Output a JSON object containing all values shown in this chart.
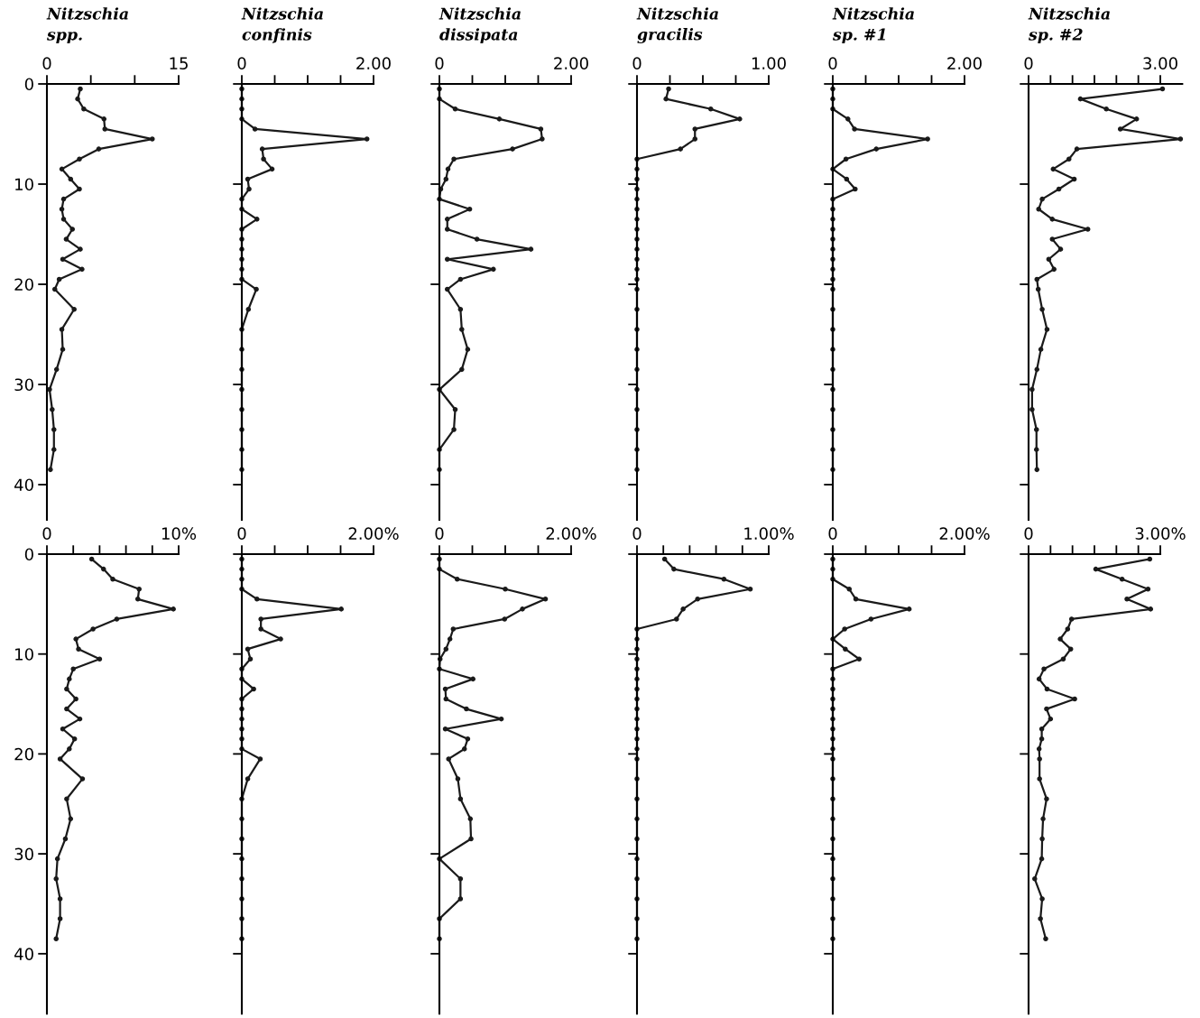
{
  "chart_data": [
    {
      "type": "line",
      "title": "Nitzschia",
      "subtitle": "spp.",
      "marker": "circle",
      "xlim": [
        0,
        15
      ],
      "xticks": [
        0,
        {
          "value": 5,
          "label": null
        },
        {
          "value": 10,
          "label": null
        },
        15
      ],
      "ylim": [
        43.5,
        0
      ],
      "yticks": [
        0,
        10,
        20,
        30,
        40
      ],
      "series": [
        {
          "color": "#1a1a1a",
          "x": [
            3.8,
            3.5,
            4.2,
            6.5,
            6.6,
            12.0,
            5.9,
            3.7,
            1.7,
            2.7,
            3.7,
            1.9,
            1.7,
            1.9,
            2.9,
            2.2,
            3.8,
            1.8,
            4.0,
            1.4,
            0.9,
            3.1,
            1.7,
            1.8,
            1.1,
            0.3,
            0.6,
            0.8,
            0.8,
            0.4
          ],
          "values": [
            0.5,
            1.5,
            2.5,
            3.5,
            4.5,
            5.5,
            6.5,
            7.5,
            8.5,
            9.5,
            10.5,
            11.5,
            12.5,
            13.5,
            14.5,
            15.5,
            16.5,
            17.5,
            18.5,
            19.5,
            20.5,
            22.5,
            24.5,
            26.5,
            28.5,
            30.5,
            32.5,
            34.5,
            36.5,
            38.5
          ]
        }
      ]
    },
    {
      "type": "line",
      "title": "Nitzschia",
      "subtitle": "confinis",
      "marker": "circle",
      "tick_labels": "x",
      "xlim": [
        0,
        2
      ],
      "xticks": [
        0,
        {
          "value": 0.5,
          "label": null
        },
        {
          "value": 1,
          "label": null
        },
        {
          "value": 1.5,
          "label": null
        },
        {
          "value": 2,
          "label": "2.00"
        }
      ],
      "ylim": [
        43.5,
        0
      ],
      "yticks": [
        0,
        10,
        20,
        30,
        40
      ],
      "series": [
        {
          "color": "#1a1a1a",
          "x": [
            0,
            0,
            0,
            0,
            0.2,
            1.9,
            0.31,
            0.33,
            0.46,
            0.09,
            0.11,
            0,
            0,
            0.23,
            0,
            0,
            0,
            0,
            0,
            0,
            0.22,
            0.1,
            0,
            0,
            0,
            0,
            0,
            0,
            0,
            0
          ],
          "values": [
            0.5,
            1.5,
            2.5,
            3.5,
            4.5,
            5.5,
            6.5,
            7.5,
            8.5,
            9.5,
            10.5,
            11.5,
            12.5,
            13.5,
            14.5,
            15.5,
            16.5,
            17.5,
            18.5,
            19.5,
            20.5,
            22.5,
            24.5,
            26.5,
            28.5,
            30.5,
            32.5,
            34.5,
            36.5,
            38.5
          ]
        }
      ]
    },
    {
      "type": "line",
      "title": "Nitzschia",
      "subtitle": "dissipata",
      "marker": "circle",
      "tick_labels": "x",
      "xlim": [
        0,
        2
      ],
      "xticks": [
        0,
        {
          "value": 0.5,
          "label": null
        },
        {
          "value": 1,
          "label": null
        },
        {
          "value": 1.5,
          "label": null
        },
        {
          "value": 2,
          "label": "2.00"
        }
      ],
      "ylim": [
        43.5,
        0
      ],
      "yticks": [
        0,
        10,
        20,
        30,
        40
      ],
      "series": [
        {
          "color": "#1a1a1a",
          "x": [
            0,
            0,
            0.24,
            0.91,
            1.54,
            1.56,
            1.11,
            0.22,
            0.13,
            0.1,
            0.02,
            0,
            0.46,
            0.12,
            0.12,
            0.57,
            1.39,
            0.12,
            0.82,
            0.32,
            0.12,
            0.32,
            0.34,
            0.43,
            0.34,
            0,
            0.24,
            0.22,
            0,
            0
          ],
          "values": [
            0.5,
            1.5,
            2.5,
            3.5,
            4.5,
            5.5,
            6.5,
            7.5,
            8.5,
            9.5,
            10.5,
            11.5,
            12.5,
            13.5,
            14.5,
            15.5,
            16.5,
            17.5,
            18.5,
            19.5,
            20.5,
            22.5,
            24.5,
            26.5,
            28.5,
            30.5,
            32.5,
            34.5,
            36.5,
            38.5
          ]
        }
      ]
    },
    {
      "type": "line",
      "title": "Nitzschia",
      "subtitle": "gracilis",
      "marker": "circle",
      "tick_labels": "x",
      "xlim": [
        0,
        1
      ],
      "xticks": [
        0,
        {
          "value": 0.25,
          "label": null
        },
        {
          "value": 0.5,
          "label": null
        },
        {
          "value": 0.75,
          "label": null
        },
        {
          "value": 1,
          "label": "1.00"
        }
      ],
      "ylim": [
        43.5,
        0
      ],
      "yticks": [
        0,
        10,
        20,
        30,
        40
      ],
      "series": [
        {
          "color": "#1a1a1a",
          "x": [
            0.24,
            0.22,
            0.56,
            0.78,
            0.44,
            0.44,
            0.33,
            0,
            0,
            0,
            0,
            0,
            0,
            0,
            0,
            0,
            0,
            0,
            0,
            0,
            0,
            0,
            0,
            0,
            0,
            0,
            0,
            0,
            0,
            0
          ],
          "values": [
            0.5,
            1.5,
            2.5,
            3.5,
            4.5,
            5.5,
            6.5,
            7.5,
            8.5,
            9.5,
            10.5,
            11.5,
            12.5,
            13.5,
            14.5,
            15.5,
            16.5,
            17.5,
            18.5,
            19.5,
            20.5,
            22.5,
            24.5,
            26.5,
            28.5,
            30.5,
            32.5,
            34.5,
            36.5,
            38.5
          ]
        }
      ]
    },
    {
      "type": "line",
      "title": "Nitzschia",
      "subtitle": "sp. #1",
      "marker": "circle",
      "tick_labels": "x",
      "xlim": [
        0,
        2
      ],
      "xticks": [
        0,
        {
          "value": 0.5,
          "label": null
        },
        {
          "value": 1,
          "label": null
        },
        {
          "value": 1.5,
          "label": null
        },
        {
          "value": 2,
          "label": "2.00"
        }
      ],
      "ylim": [
        43.5,
        0
      ],
      "yticks": [
        0,
        10,
        20,
        30,
        40
      ],
      "series": [
        {
          "color": "#1a1a1a",
          "x": [
            0,
            0,
            0,
            0.23,
            0.33,
            1.44,
            0.66,
            0.2,
            0,
            0.21,
            0.34,
            0,
            0,
            0,
            0,
            0,
            0,
            0,
            0,
            0,
            0,
            0,
            0,
            0,
            0,
            0,
            0,
            0,
            0,
            0
          ],
          "values": [
            0.5,
            1.5,
            2.5,
            3.5,
            4.5,
            5.5,
            6.5,
            7.5,
            8.5,
            9.5,
            10.5,
            11.5,
            12.5,
            13.5,
            14.5,
            15.5,
            16.5,
            17.5,
            18.5,
            19.5,
            20.5,
            22.5,
            24.5,
            26.5,
            28.5,
            30.5,
            32.5,
            34.5,
            36.5,
            38.5
          ]
        }
      ]
    },
    {
      "type": "line",
      "title": "Nitzschia",
      "subtitle": "sp. #2",
      "marker": "circle",
      "tick_labels": "x",
      "xlim": [
        0,
        3.5
      ],
      "xticks": [
        0,
        {
          "value": 0.5,
          "label": null
        },
        {
          "value": 1,
          "label": null
        },
        {
          "value": 1.5,
          "label": null
        },
        {
          "value": 2,
          "label": null
        },
        {
          "value": 2.5,
          "label": null
        },
        {
          "value": 3,
          "label": "3.00"
        }
      ],
      "ylim": [
        43.5,
        0
      ],
      "yticks": [
        0,
        10,
        20,
        30,
        40
      ],
      "series": [
        {
          "color": "#1a1a1a",
          "x": [
            3.05,
            1.18,
            1.77,
            2.46,
            2.09,
            3.46,
            1.1,
            0.92,
            0.56,
            1.04,
            0.69,
            0.31,
            0.23,
            0.54,
            1.35,
            0.54,
            0.73,
            0.46,
            0.58,
            0.19,
            0.22,
            0.31,
            0.42,
            0.28,
            0.19,
            0.08,
            0.08,
            0.18,
            0.18,
            0.19
          ],
          "values": [
            0.5,
            1.5,
            2.5,
            3.5,
            4.5,
            5.5,
            6.5,
            7.5,
            8.5,
            9.5,
            10.5,
            11.5,
            12.5,
            13.5,
            14.5,
            15.5,
            16.5,
            17.5,
            18.5,
            19.5,
            20.5,
            22.5,
            24.5,
            26.5,
            28.5,
            30.5,
            32.5,
            34.5,
            36.5,
            38.5
          ]
        }
      ]
    },
    {
      "type": "line",
      "marker": "circle",
      "xlim": [
        0,
        10
      ],
      "xticks": [
        0,
        {
          "value": 2,
          "label": null
        },
        {
          "value": 4,
          "label": null
        },
        {
          "value": 6,
          "label": null
        },
        {
          "value": 8,
          "label": null
        },
        {
          "value": 10,
          "label": "10%"
        }
      ],
      "ylim": [
        46,
        0
      ],
      "yticks": [
        0,
        10,
        20,
        30,
        40
      ],
      "series": [
        {
          "color": "#1a1a1a",
          "x": [
            3.4,
            4.3,
            5.0,
            7.0,
            6.9,
            9.6,
            5.3,
            3.5,
            2.2,
            2.4,
            4.0,
            2.0,
            1.7,
            1.5,
            2.2,
            1.5,
            2.5,
            1.2,
            2.1,
            1.7,
            1.0,
            2.7,
            1.5,
            1.8,
            1.4,
            0.8,
            0.7,
            1.0,
            1.0,
            0.7
          ],
          "values": [
            0.5,
            1.5,
            2.5,
            3.5,
            4.5,
            5.5,
            6.5,
            7.5,
            8.5,
            9.5,
            10.5,
            11.5,
            12.5,
            13.5,
            14.5,
            15.5,
            16.5,
            17.5,
            18.5,
            19.5,
            20.5,
            22.5,
            24.5,
            26.5,
            28.5,
            30.5,
            32.5,
            34.5,
            36.5,
            38.5
          ]
        }
      ]
    },
    {
      "type": "line",
      "marker": "circle",
      "tick_labels": "x",
      "xlim": [
        0,
        2
      ],
      "xticks": [
        0,
        {
          "value": 0.5,
          "label": null
        },
        {
          "value": 1,
          "label": null
        },
        {
          "value": 1.5,
          "label": null
        },
        {
          "value": 2,
          "label": "2.00%"
        }
      ],
      "ylim": [
        46,
        0
      ],
      "yticks": [
        0,
        10,
        20,
        30,
        40
      ],
      "series": [
        {
          "color": "#1a1a1a",
          "x": [
            0,
            0,
            0,
            0,
            0.23,
            1.51,
            0.29,
            0.29,
            0.59,
            0.09,
            0.13,
            0,
            0,
            0.18,
            0,
            0,
            0,
            0,
            0,
            0,
            0.28,
            0.09,
            0,
            0,
            0,
            0,
            0,
            0,
            0,
            0
          ],
          "values": [
            0.5,
            1.5,
            2.5,
            3.5,
            4.5,
            5.5,
            6.5,
            7.5,
            8.5,
            9.5,
            10.5,
            11.5,
            12.5,
            13.5,
            14.5,
            15.5,
            16.5,
            17.5,
            18.5,
            19.5,
            20.5,
            22.5,
            24.5,
            26.5,
            28.5,
            30.5,
            32.5,
            34.5,
            36.5,
            38.5
          ]
        }
      ]
    },
    {
      "type": "line",
      "marker": "circle",
      "tick_labels": "x",
      "xlim": [
        0,
        2
      ],
      "xticks": [
        0,
        {
          "value": 0.5,
          "label": null
        },
        {
          "value": 1,
          "label": null
        },
        {
          "value": 1.5,
          "label": null
        },
        {
          "value": 2,
          "label": "2.00%"
        }
      ],
      "ylim": [
        46,
        0
      ],
      "yticks": [
        0,
        10,
        20,
        30,
        40
      ],
      "series": [
        {
          "color": "#1a1a1a",
          "x": [
            0,
            0,
            0.27,
            1.0,
            1.61,
            1.26,
            0.99,
            0.21,
            0.16,
            0.1,
            0.01,
            0,
            0.51,
            0.09,
            0.1,
            0.41,
            0.94,
            0.09,
            0.43,
            0.38,
            0.14,
            0.28,
            0.32,
            0.47,
            0.48,
            0,
            0.32,
            0.32,
            0,
            0
          ],
          "values": [
            0.5,
            1.5,
            2.5,
            3.5,
            4.5,
            5.5,
            6.5,
            7.5,
            8.5,
            9.5,
            10.5,
            11.5,
            12.5,
            13.5,
            14.5,
            15.5,
            16.5,
            17.5,
            18.5,
            19.5,
            20.5,
            22.5,
            24.5,
            26.5,
            28.5,
            30.5,
            32.5,
            34.5,
            36.5,
            38.5
          ]
        }
      ]
    },
    {
      "type": "line",
      "marker": "circle",
      "tick_labels": "x",
      "xlim": [
        0,
        1
      ],
      "xticks": [
        0,
        {
          "value": 0.2,
          "label": null
        },
        {
          "value": 0.4,
          "label": null
        },
        {
          "value": 0.6,
          "label": null
        },
        {
          "value": 0.8,
          "label": null
        },
        {
          "value": 1,
          "label": "1.00%"
        }
      ],
      "ylim": [
        46,
        0
      ],
      "yticks": [
        0,
        10,
        20,
        30,
        40
      ],
      "series": [
        {
          "color": "#1a1a1a",
          "x": [
            0.21,
            0.28,
            0.66,
            0.86,
            0.46,
            0.35,
            0.3,
            0,
            0,
            0,
            0,
            0,
            0,
            0,
            0,
            0,
            0,
            0,
            0,
            0,
            0,
            0,
            0,
            0,
            0,
            0,
            0,
            0,
            0,
            0
          ],
          "values": [
            0.5,
            1.5,
            2.5,
            3.5,
            4.5,
            5.5,
            6.5,
            7.5,
            8.5,
            9.5,
            10.5,
            11.5,
            12.5,
            13.5,
            14.5,
            15.5,
            16.5,
            17.5,
            18.5,
            19.5,
            20.5,
            22.5,
            24.5,
            26.5,
            28.5,
            30.5,
            32.5,
            34.5,
            36.5,
            38.5
          ]
        }
      ]
    },
    {
      "type": "line",
      "marker": "circle",
      "tick_labels": "x",
      "xlim": [
        0,
        2
      ],
      "xticks": [
        0,
        {
          "value": 0.5,
          "label": null
        },
        {
          "value": 1,
          "label": null
        },
        {
          "value": 1.5,
          "label": null
        },
        {
          "value": 2,
          "label": "2.00%"
        }
      ],
      "ylim": [
        46,
        0
      ],
      "yticks": [
        0,
        10,
        20,
        30,
        40
      ],
      "series": [
        {
          "color": "#1a1a1a",
          "x": [
            0,
            0,
            0,
            0.25,
            0.35,
            1.16,
            0.58,
            0.18,
            0,
            0.19,
            0.4,
            0,
            0,
            0,
            0,
            0,
            0,
            0,
            0,
            0,
            0,
            0,
            0,
            0,
            0,
            0,
            0,
            0,
            0,
            0
          ],
          "values": [
            0.5,
            1.5,
            2.5,
            3.5,
            4.5,
            5.5,
            6.5,
            7.5,
            8.5,
            9.5,
            10.5,
            11.5,
            12.5,
            13.5,
            14.5,
            15.5,
            16.5,
            17.5,
            18.5,
            19.5,
            20.5,
            22.5,
            24.5,
            26.5,
            28.5,
            30.5,
            32.5,
            34.5,
            36.5,
            38.5
          ]
        }
      ]
    },
    {
      "type": "line",
      "marker": "circle",
      "tick_labels": "x",
      "xlim": [
        0,
        3
      ],
      "xticks": [
        0,
        {
          "value": 0.5,
          "label": null
        },
        {
          "value": 1,
          "label": null
        },
        {
          "value": 1.5,
          "label": null
        },
        {
          "value": 2,
          "label": null
        },
        {
          "value": 2.5,
          "label": null
        },
        {
          "value": 3,
          "label": "3.00%"
        }
      ],
      "ylim": [
        46,
        0
      ],
      "yticks": [
        0,
        10,
        20,
        30,
        40
      ],
      "series": [
        {
          "color": "#1a1a1a",
          "x": [
            2.76,
            1.53,
            2.13,
            2.72,
            2.24,
            2.78,
            0.98,
            0.89,
            0.72,
            0.96,
            0.79,
            0.35,
            0.24,
            0.42,
            1.05,
            0.41,
            0.5,
            0.3,
            0.3,
            0.24,
            0.25,
            0.25,
            0.41,
            0.33,
            0.31,
            0.3,
            0.14,
            0.31,
            0.27,
            0.39
          ],
          "values": [
            0.5,
            1.5,
            2.5,
            3.5,
            4.5,
            5.5,
            6.5,
            7.5,
            8.5,
            9.5,
            10.5,
            11.5,
            12.5,
            13.5,
            14.5,
            15.5,
            16.5,
            17.5,
            18.5,
            19.5,
            20.5,
            22.5,
            24.5,
            26.5,
            28.5,
            30.5,
            32.5,
            34.5,
            36.5,
            38.5
          ]
        }
      ]
    }
  ]
}
